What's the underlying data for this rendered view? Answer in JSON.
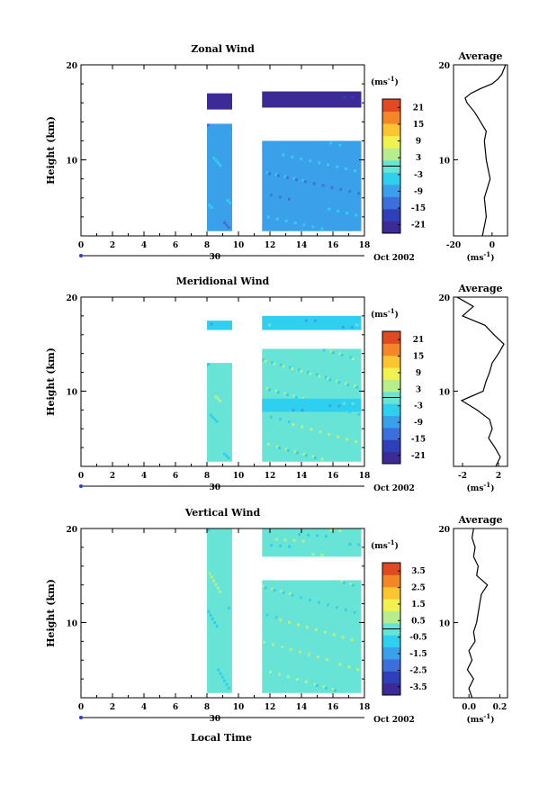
{
  "figure": {
    "date_label": "Oct 2002",
    "date_day": "30",
    "x_axis_label": "Local Time"
  },
  "chart_data": [
    {
      "type": "heatmap",
      "title": "Zonal Wind",
      "ylabel": "Height (km)",
      "xlim": [
        0,
        18
      ],
      "ylim": [
        2,
        20
      ],
      "x_ticks": [
        0,
        2,
        4,
        6,
        8,
        10,
        12,
        14,
        16,
        18
      ],
      "y_ticks": [
        10,
        20
      ],
      "colorbar": {
        "unit": "(ms",
        "unit_exp": "-1",
        "unit_close": ")",
        "ticks": [
          "21",
          "15",
          "9",
          "3",
          "-3",
          "-9",
          "-15",
          "-21"
        ],
        "range": [
          -24,
          24
        ]
      },
      "data_blocks": [
        {
          "x": [
            8.0,
            9.6
          ],
          "y": [
            2.5,
            13.8
          ],
          "value": -8
        },
        {
          "x": [
            8.0,
            9.6
          ],
          "y": [
            15.3,
            17.0
          ],
          "value": -20
        },
        {
          "x": [
            11.5,
            17.8
          ],
          "y": [
            2.5,
            12.0
          ],
          "value": -7
        },
        {
          "x": [
            11.5,
            17.8
          ],
          "y": [
            15.5,
            17.2
          ],
          "value": -22
        }
      ],
      "average": {
        "title": "Average",
        "xlabel": "(ms",
        "xlabel_exp": "-1",
        "xlabel_close": ")",
        "xlim": [
          -20,
          8
        ],
        "x_ticks": [
          "-20",
          "0"
        ],
        "y_ticks": [
          10,
          20
        ],
        "y": [
          2,
          4,
          6,
          8,
          10,
          12,
          13,
          14,
          15,
          16,
          16.5,
          17,
          17.5,
          18,
          18.5,
          19,
          20
        ],
        "x": [
          -5,
          -3,
          -4,
          -1,
          -3,
          -4,
          -3,
          -6,
          -9,
          -13,
          -14,
          -11,
          -6,
          0,
          3,
          5,
          7
        ]
      }
    },
    {
      "type": "heatmap",
      "title": "Meridional Wind",
      "ylabel": "Height (km)",
      "xlim": [
        0,
        18
      ],
      "ylim": [
        2,
        20
      ],
      "x_ticks": [
        0,
        2,
        4,
        6,
        8,
        10,
        12,
        14,
        16,
        18
      ],
      "y_ticks": [
        10,
        20
      ],
      "colorbar": {
        "unit": "(ms",
        "unit_exp": "-1",
        "unit_close": ")",
        "ticks": [
          "21",
          "15",
          "9",
          "3",
          "-3",
          "-9",
          "-15",
          "-21"
        ],
        "range": [
          -24,
          24
        ]
      },
      "data_blocks": [
        {
          "x": [
            8.0,
            9.6
          ],
          "y": [
            2.5,
            13.0
          ],
          "value": -1
        },
        {
          "x": [
            8.0,
            9.6
          ],
          "y": [
            16.5,
            17.5
          ],
          "value": -4
        },
        {
          "x": [
            11.5,
            17.8
          ],
          "y": [
            2.5,
            14.5
          ],
          "value": 0
        },
        {
          "x": [
            11.5,
            17.8
          ],
          "y": [
            7.8,
            9.2
          ],
          "value": -6
        },
        {
          "x": [
            11.5,
            17.8
          ],
          "y": [
            16.5,
            18.0
          ],
          "value": -5
        }
      ],
      "average": {
        "title": "Average",
        "xlabel": "(ms",
        "xlabel_exp": "-1",
        "xlabel_close": ")",
        "xlim": [
          -3,
          3
        ],
        "x_ticks": [
          "-2",
          "2"
        ],
        "y_ticks": [
          10,
          20
        ],
        "y": [
          2,
          3,
          4,
          5,
          6,
          7,
          8,
          9,
          10,
          11,
          12,
          13,
          14,
          15,
          16,
          17,
          18,
          19,
          20
        ],
        "x": [
          1.7,
          2.2,
          1.6,
          0.9,
          1.3,
          1.0,
          -0.4,
          -2.1,
          0.3,
          0.6,
          1.0,
          1.3,
          2.0,
          2.6,
          1.5,
          0.5,
          -2.0,
          -0.8,
          -2.6
        ]
      }
    },
    {
      "type": "heatmap",
      "title": "Vertical Wind",
      "ylabel": "Height (km)",
      "xlim": [
        0,
        18
      ],
      "ylim": [
        2,
        20
      ],
      "x_ticks": [
        0,
        2,
        4,
        6,
        8,
        10,
        12,
        14,
        16,
        18
      ],
      "y_ticks": [
        10,
        20
      ],
      "colorbar": {
        "unit": "(ms",
        "unit_exp": "-1",
        "unit_close": ")",
        "ticks": [
          "3.5",
          "2.5",
          "1.5",
          "0.5",
          "-0.5",
          "-1.5",
          "-2.5",
          "-3.5"
        ],
        "range": [
          -4,
          4
        ]
      },
      "data_blocks": [
        {
          "x": [
            8.0,
            9.6
          ],
          "y": [
            2.5,
            20.0
          ],
          "value": -0.3
        },
        {
          "x": [
            11.5,
            17.8
          ],
          "y": [
            2.5,
            14.5
          ],
          "value": 0.1
        },
        {
          "x": [
            11.5,
            17.8
          ],
          "y": [
            17.0,
            20.0
          ],
          "value": 0.0
        }
      ],
      "average": {
        "title": "Average",
        "xlabel": "(ms",
        "xlabel_exp": "-1",
        "xlabel_close": ")",
        "xlim": [
          -0.1,
          0.25
        ],
        "x_ticks": [
          "0.0",
          "0.2"
        ],
        "y_ticks": [
          10,
          20
        ],
        "y": [
          2,
          3,
          4,
          5,
          6,
          7,
          8,
          9,
          10,
          11,
          12,
          13,
          14,
          15,
          16,
          17,
          18,
          19,
          20
        ],
        "x": [
          0.02,
          0.0,
          0.03,
          -0.01,
          0.02,
          0.0,
          0.04,
          0.03,
          0.05,
          0.06,
          0.07,
          0.08,
          0.12,
          0.05,
          0.06,
          0.03,
          0.04,
          0.02,
          0.03
        ]
      }
    }
  ]
}
